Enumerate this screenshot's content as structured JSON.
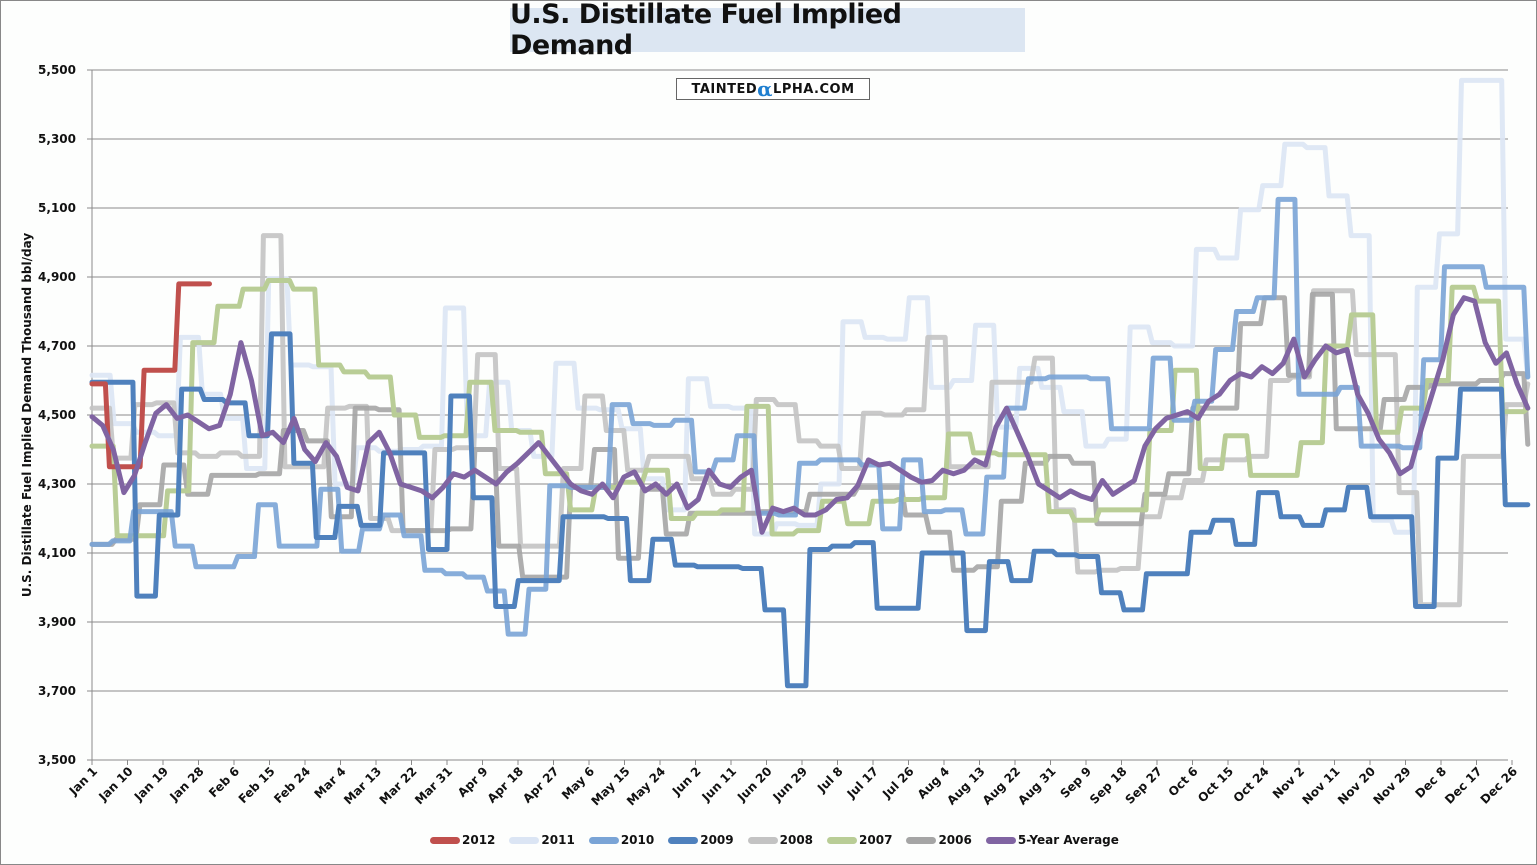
{
  "chart_data": {
    "type": "line",
    "title": "U.S. Distillate Fuel Implied Demand",
    "watermark": {
      "prefix": "TAINTED",
      "alpha": "α",
      "suffix": "LPHA.COM"
    },
    "xlabel": "",
    "ylabel": "U.S. Distillate Fuel Implied Demand Thousand bbl/day",
    "ylim": [
      3500,
      5500
    ],
    "yticks": [
      3500,
      3700,
      3900,
      4100,
      4300,
      4500,
      4700,
      4900,
      5100,
      5300,
      5500
    ],
    "ytick_labels": [
      "3,500",
      "3,700",
      "3,900",
      "4,100",
      "4,300",
      "4,500",
      "4,700",
      "4,900",
      "5,100",
      "5,300",
      "5,500"
    ],
    "xlim_days": [
      0,
      364
    ],
    "x_tick_labels": [
      "Jan 1",
      "Jan 10",
      "Jan 19",
      "Jan 28",
      "Feb 6",
      "Feb 15",
      "Feb 24",
      "Mar 4",
      "Mar 13",
      "Mar 22",
      "Mar 31",
      "Apr 9",
      "Apr 18",
      "Apr 27",
      "May 6",
      "May 15",
      "May 24",
      "Jun 2",
      "Jun 11",
      "Jun 20",
      "Jun 29",
      "Jul 8",
      "Jul 17",
      "Jul 26",
      "Aug 4",
      "Aug 13",
      "Aug 22",
      "Aug 31",
      "Sep 9",
      "Sep 18",
      "Sep 27",
      "Oct 6",
      "Oct 15",
      "Oct 24",
      "Nov 2",
      "Nov 11",
      "Nov 20",
      "Nov 29",
      "Dec 8",
      "Dec 17",
      "Dec 26"
    ],
    "x_tick_step_days": 9,
    "grid": true,
    "legend_position": "bottom",
    "series": [
      {
        "name": "2006",
        "color": "#a5a5a5",
        "week_step": 7,
        "values": [
          4125,
          4140,
          4240,
          4355,
          4270,
          4325,
          4325,
          4330,
          4455,
          4425,
          4205,
          4520,
          4515,
          4165,
          4165,
          4170,
          4400,
          4120,
          4030,
          4030,
          4290,
          4400,
          4085,
          4285,
          4155,
          4215,
          4215,
          4215,
          4220,
          4220,
          4270,
          4270,
          4290,
          4290,
          4210,
          4160,
          4050,
          4060,
          4250,
          4360,
          4380,
          4360,
          4185,
          4185,
          4270,
          4330,
          4520,
          4520,
          4765,
          4840,
          4615,
          4850,
          4460,
          4460,
          4545,
          4580,
          4590,
          4590,
          4600,
          4620,
          4415
        ]
      },
      {
        "name": "2007",
        "color": "#b9cd96",
        "week_step": 7,
        "values": [
          4410,
          4150,
          4150,
          4280,
          4710,
          4815,
          4865,
          4890,
          4865,
          4645,
          4625,
          4610,
          4500,
          4435,
          4440,
          4595,
          4455,
          4450,
          4330,
          4225,
          4290,
          4305,
          4340,
          4200,
          4215,
          4225,
          4525,
          4155,
          4165,
          4250,
          4185,
          4250,
          4255,
          4260,
          4445,
          4390,
          4385,
          4385,
          4220,
          4195,
          4225,
          4225,
          4455,
          4630,
          4345,
          4440,
          4325,
          4325,
          4420,
          4700,
          4790,
          4450,
          4520,
          4600,
          4870,
          4830,
          4510,
          4520
        ]
      },
      {
        "name": "2008",
        "color": "#c3c3c3",
        "week_step": 7,
        "values": [
          4520,
          4375,
          4530,
          4535,
          4390,
          4380,
          4390,
          4380,
          5020,
          4350,
          4350,
          4520,
          4525,
          4200,
          4165,
          4165,
          4400,
          4405,
          4675,
          4345,
          4120,
          4120,
          4345,
          4555,
          4455,
          4340,
          4380,
          4380,
          4315,
          4270,
          4285,
          4545,
          4530,
          4425,
          4410,
          4345,
          4505,
          4500,
          4515,
          4725,
          4350,
          4350,
          4595,
          4595,
          4665,
          4225,
          4045,
          4050,
          4055,
          4205,
          4260,
          4310,
          4370,
          4370,
          4380,
          4600,
          4610,
          4860,
          4860,
          4675,
          4675,
          4275,
          3950,
          3950,
          4380,
          4380,
          4530,
          4590
        ]
      },
      {
        "name": "2009",
        "color": "#4f81bd",
        "week_step": 7,
        "values": [
          4595,
          4595,
          3975,
          4210,
          4575,
          4545,
          4535,
          4440,
          4735,
          4360,
          4145,
          4235,
          4180,
          4390,
          4390,
          4110,
          4555,
          4260,
          3945,
          4020,
          4020,
          4205,
          4205,
          4200,
          4020,
          4140,
          4065,
          4060,
          4060,
          4055,
          3935,
          3715,
          4110,
          4120,
          4130,
          3940,
          3940,
          4100,
          4100,
          3875,
          4075,
          4020,
          4105,
          4095,
          4090,
          3985,
          3935,
          4040,
          4040,
          4160,
          4195,
          4125,
          4275,
          4205,
          4180,
          4225,
          4290,
          4205,
          4205,
          3945,
          4375,
          4575,
          4575,
          4240,
          4240
        ]
      },
      {
        "name": "2010",
        "color": "#7aa4d6",
        "week_step": 7,
        "values": [
          4125,
          4135,
          4220,
          4220,
          4120,
          4060,
          4060,
          4090,
          4240,
          4120,
          4120,
          4285,
          4105,
          4170,
          4210,
          4150,
          4050,
          4040,
          4030,
          3990,
          3865,
          3995,
          4295,
          4290,
          4290,
          4530,
          4475,
          4470,
          4485,
          4335,
          4370,
          4440,
          4215,
          4210,
          4360,
          4370,
          4370,
          4355,
          4170,
          4370,
          4220,
          4225,
          4155,
          4320,
          4520,
          4605,
          4610,
          4610,
          4605,
          4460,
          4460,
          4665,
          4485,
          4540,
          4690,
          4800,
          4840,
          5125,
          4560,
          4560,
          4580,
          4410,
          4410,
          4405,
          4660,
          4930,
          4930,
          4870,
          4870,
          4610
        ]
      },
      {
        "name": "2011",
        "color": "#dbe5f4",
        "week_step": 7,
        "values": [
          4615,
          4475,
          4450,
          4440,
          4725,
          4560,
          4490,
          4345,
          4895,
          4645,
          4640,
          4300,
          4405,
          4395,
          4400,
          4410,
          4810,
          4440,
          4595,
          4455,
          4380,
          4650,
          4520,
          4515,
          4460,
          4315,
          4225,
          4605,
          4525,
          4520,
          4155,
          4185,
          4180,
          4300,
          4770,
          4725,
          4720,
          4840,
          4580,
          4600,
          4760,
          4465,
          4635,
          4580,
          4510,
          4410,
          4430,
          4755,
          4710,
          4700,
          4980,
          4955,
          5095,
          5165,
          5285,
          5275,
          5135,
          5020,
          4195,
          4160,
          4870,
          5025,
          5470,
          5470,
          4720,
          4610
        ]
      },
      {
        "name": "2012",
        "color": "#c0504d",
        "week_step": 7,
        "values": [
          4590,
          4350,
          4350,
          4630,
          4630,
          4880,
          4880
        ]
      },
      {
        "name": "5-Year Average",
        "color": "#8064a2",
        "week_step": 3.5,
        "values": [
          4495,
          4470,
          4400,
          4275,
          4325,
          4420,
          4505,
          4530,
          4490,
          4500,
          4480,
          4460,
          4470,
          4560,
          4710,
          4600,
          4440,
          4450,
          4420,
          4490,
          4400,
          4365,
          4420,
          4380,
          4290,
          4280,
          4420,
          4450,
          4390,
          4300,
          4290,
          4280,
          4260,
          4290,
          4330,
          4320,
          4340,
          4320,
          4300,
          4335,
          4360,
          4390,
          4420,
          4380,
          4340,
          4300,
          4280,
          4270,
          4300,
          4260,
          4320,
          4335,
          4280,
          4300,
          4270,
          4300,
          4230,
          4255,
          4340,
          4300,
          4290,
          4320,
          4340,
          4160,
          4230,
          4220,
          4230,
          4210,
          4210,
          4225,
          4255,
          4260,
          4295,
          4370,
          4355,
          4360,
          4340,
          4320,
          4305,
          4310,
          4340,
          4330,
          4340,
          4370,
          4355,
          4465,
          4520,
          4450,
          4380,
          4300,
          4280,
          4260,
          4280,
          4265,
          4255,
          4310,
          4270,
          4290,
          4310,
          4410,
          4460,
          4490,
          4500,
          4510,
          4490,
          4540,
          4560,
          4600,
          4620,
          4610,
          4640,
          4620,
          4650,
          4720,
          4610,
          4660,
          4700,
          4680,
          4690,
          4560,
          4505,
          4430,
          4390,
          4330,
          4350,
          4460,
          4560,
          4660,
          4790,
          4840,
          4830,
          4710,
          4650,
          4680,
          4590,
          4520
        ]
      }
    ]
  }
}
